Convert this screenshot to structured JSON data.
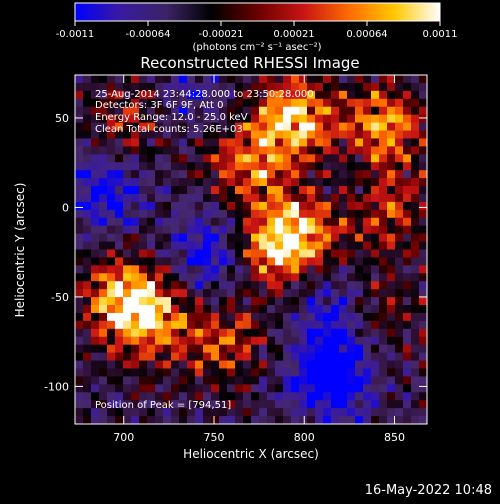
{
  "colorbar": {
    "ticks": [
      "-0.0011",
      "-0.00064",
      "-0.00021",
      "0.00021",
      "0.00064",
      "0.0011"
    ],
    "units": "(photons cm⁻² s⁻¹ asec⁻²)",
    "stops": [
      "#0000ff",
      "#3a1aa0",
      "#3a2466",
      "#000000",
      "#6a0000",
      "#c81414",
      "#ff6a00",
      "#ffc800",
      "#ffffff"
    ]
  },
  "image": {
    "title": "Reconstructed RHESSI Image",
    "info_lines": [
      "25-Aug-2014 23:44:28.000 to 23:50:28.000",
      "Detectors: 3F 6F 9F, Att 0",
      "Energy Range: 12.0 - 25.0 keV",
      "Clean     Total counts: 5.26E+03"
    ],
    "peak_text": "Position of Peak = [794,51]"
  },
  "timestamp": "16-May-2022 10:48",
  "chart_data": {
    "type": "heatmap",
    "title": "Reconstructed RHESSI Image",
    "xlabel": "Heliocentric X (arcsec)",
    "ylabel": "Heliocentric Y (arcsec)",
    "xlim": [
      673,
      868
    ],
    "ylim": [
      -121,
      74
    ],
    "xticks": [
      700,
      750,
      800,
      850
    ],
    "yticks": [
      50,
      0,
      -50,
      -100
    ],
    "color_range": [
      -0.0011,
      0.0011
    ],
    "peak_position": [
      794,
      51
    ],
    "bright_sources": [
      {
        "x": 795,
        "y": 50,
        "level": 1.0
      },
      {
        "x": 845,
        "y": 45,
        "level": 0.9
      },
      {
        "x": 770,
        "y": 25,
        "level": 0.75
      },
      {
        "x": 780,
        "y": -20,
        "level": 0.9
      },
      {
        "x": 800,
        "y": -15,
        "level": 0.7
      },
      {
        "x": 700,
        "y": -50,
        "level": 0.9
      },
      {
        "x": 715,
        "y": -65,
        "level": 0.7
      },
      {
        "x": 705,
        "y": 50,
        "level": 0.55
      },
      {
        "x": 755,
        "y": -75,
        "level": 0.65
      },
      {
        "x": 850,
        "y": -5,
        "level": 0.55
      },
      {
        "x": 840,
        "y": -60,
        "level": 0.5
      }
    ],
    "dim_regions": [
      {
        "x": 690,
        "y": 10,
        "level": -0.6
      },
      {
        "x": 750,
        "y": -25,
        "level": -0.7
      },
      {
        "x": 815,
        "y": -95,
        "level": -1.0
      },
      {
        "x": 820,
        "y": -60,
        "level": -0.6
      },
      {
        "x": 730,
        "y": 60,
        "level": -0.4
      }
    ]
  }
}
